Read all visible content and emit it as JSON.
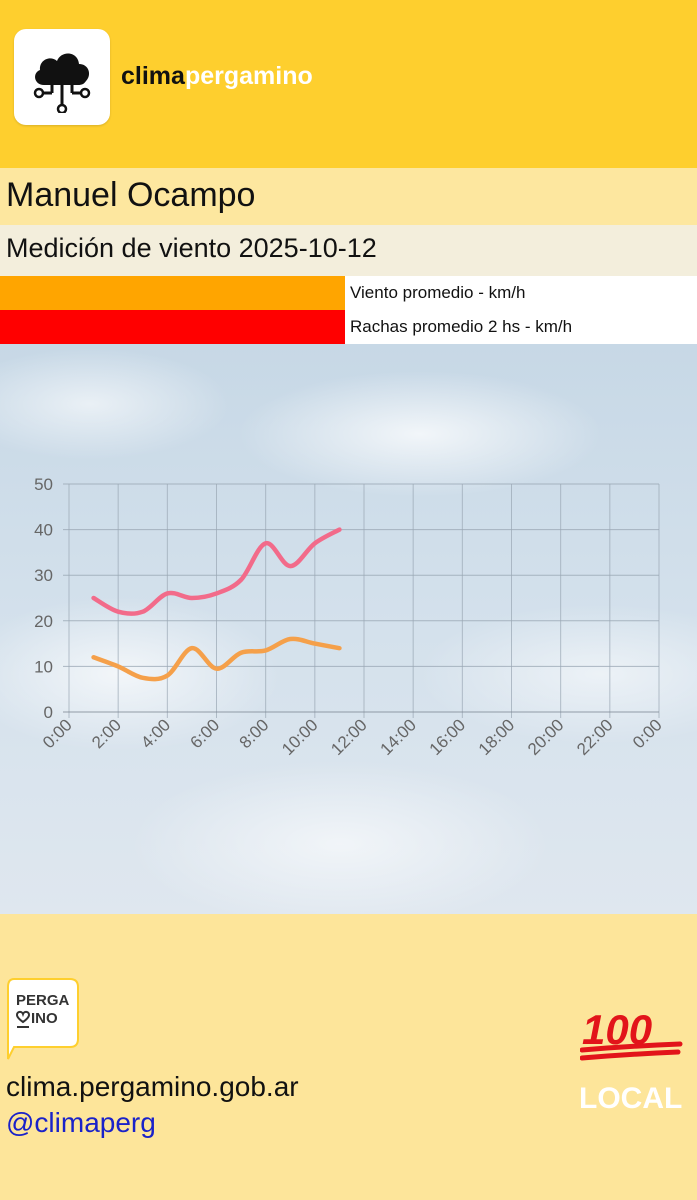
{
  "header": {
    "brand_part1": "clima",
    "brand_part2": "pergamino",
    "logo_icon": "cloud-network-icon"
  },
  "station": {
    "name": "Manuel Ocampo"
  },
  "measurement": {
    "title": "Medición de viento 2025-10-12"
  },
  "legend": [
    {
      "label": "Viento promedio - km/h",
      "color": "#ffa500"
    },
    {
      "label": "Rachas promedio 2 hs - km/h",
      "color": "#ff0000"
    }
  ],
  "chart_data": {
    "type": "line",
    "x": [
      "1:00",
      "2:00",
      "3:00",
      "4:00",
      "5:00",
      "6:00",
      "7:00",
      "8:00",
      "9:00",
      "10:00",
      "11:00"
    ],
    "x_ticks": [
      "0:00",
      "2:00",
      "4:00",
      "6:00",
      "8:00",
      "10:00",
      "12:00",
      "14:00",
      "16:00",
      "18:00",
      "20:00",
      "22:00",
      "0:00"
    ],
    "y_ticks": [
      "0",
      "10",
      "20",
      "30",
      "40",
      "50"
    ],
    "ylim": [
      0,
      50
    ],
    "xlim_hours": [
      0,
      24
    ],
    "grid": true,
    "series": [
      {
        "name": "Viento promedio - km/h",
        "color": "#f5a04a",
        "hours": [
          1,
          2,
          3,
          4,
          5,
          6,
          7,
          8,
          9,
          10,
          11
        ],
        "values": [
          12,
          10,
          7.5,
          8,
          14,
          9.5,
          13,
          13.5,
          16,
          15,
          14
        ]
      },
      {
        "name": "Rachas promedio 2 hs - km/h",
        "color": "#f26b8a",
        "hours": [
          1,
          2,
          3,
          4,
          5,
          6,
          7,
          8,
          9,
          10,
          11
        ],
        "values": [
          25,
          22,
          22,
          26,
          25,
          26,
          29,
          37,
          32,
          37,
          40
        ]
      }
    ]
  },
  "footer": {
    "badge_line1": "PERGA",
    "badge_line2": "INO",
    "url": "clima.pergamino.gob.ar",
    "handle": "@climaperg",
    "hundred": "100",
    "local": "LOCAL"
  }
}
